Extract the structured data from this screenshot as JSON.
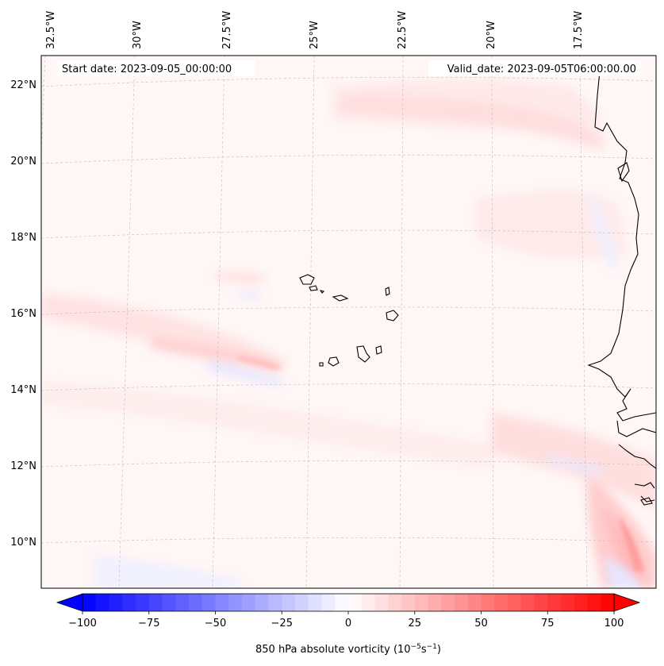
{
  "map": {
    "info_left": "Start date: 2023-09-05_00:00:00",
    "info_right": "Valid_date: 2023-09-05T06:00:00.00",
    "lon_labels": [
      "32.5°W",
      "30°W",
      "27.5°W",
      "25°W",
      "22.5°W",
      "20°W",
      "17.5°W"
    ],
    "lat_labels": [
      "22°N",
      "20°N",
      "18°N",
      "16°N",
      "14°N",
      "12°N",
      "10°N"
    ],
    "field": "850 hPa absolute vorticity",
    "features": [
      "vorticity field",
      "coastline of west Africa",
      "Cape Verde islands",
      "graticule"
    ]
  },
  "colorbar": {
    "ticks": [
      "−100",
      "−75",
      "−50",
      "−25",
      "0",
      "25",
      "50",
      "75",
      "100"
    ],
    "label": "850 hPa absolute vorticity (10",
    "label_exp1": "−5",
    "label_mid": "s",
    "label_exp2": "−1",
    "label_end": ")",
    "min": -100,
    "max": 100,
    "step": 5,
    "colormap": "bwr",
    "color_min": "#0000ff",
    "color_mid": "#ffffff",
    "color_max": "#ff0000",
    "extend": "both"
  }
}
